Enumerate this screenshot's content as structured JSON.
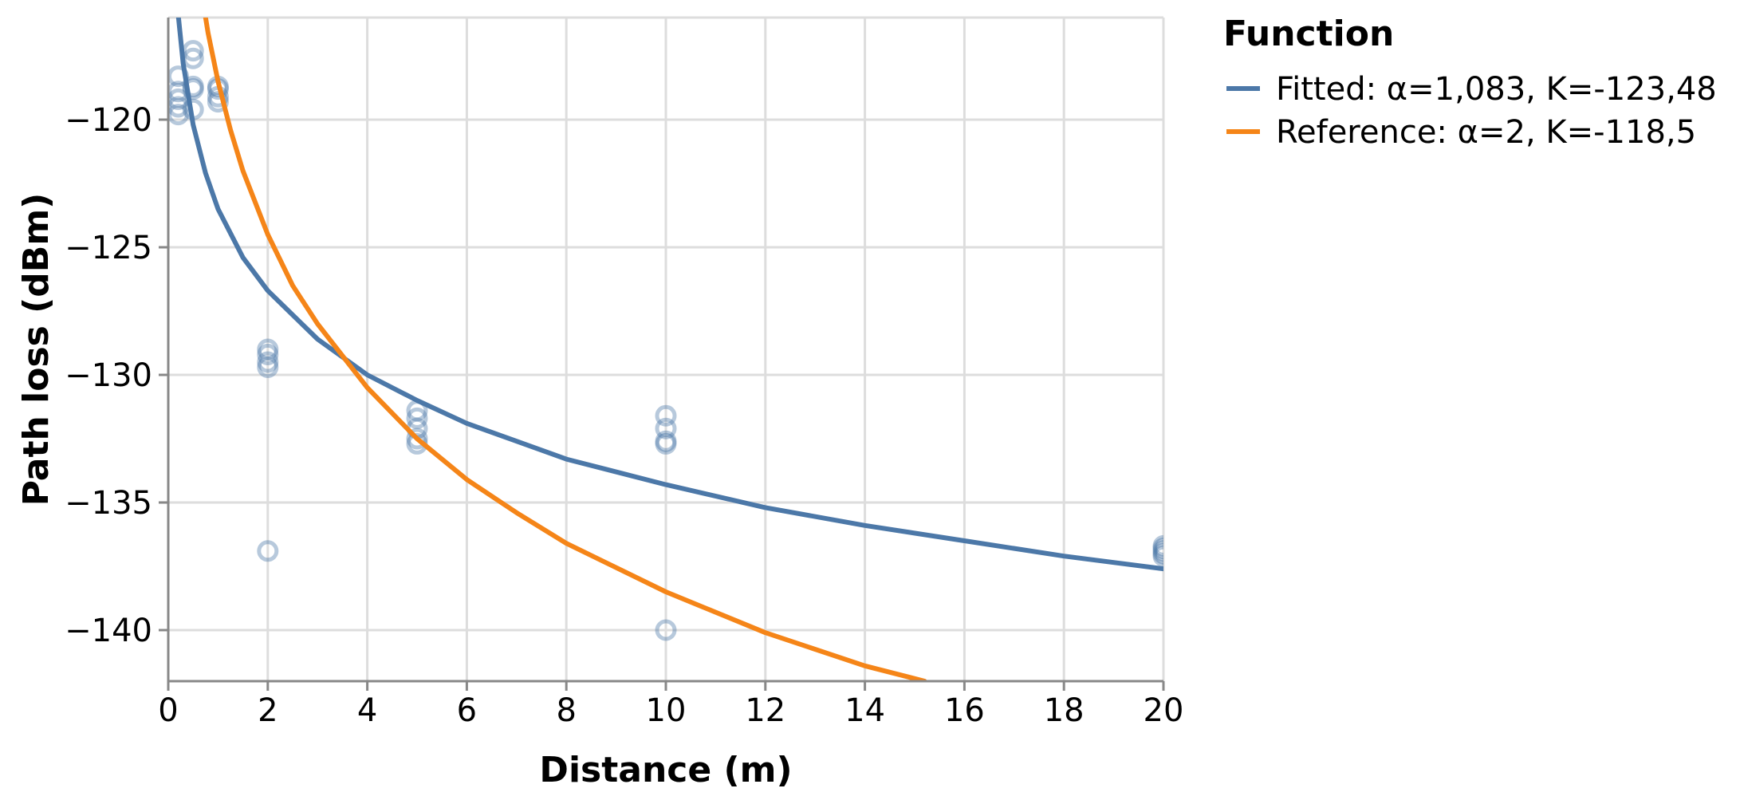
{
  "chart_data": {
    "type": "line",
    "xlabel": "Distance (m)",
    "ylabel": "Path loss (dBm)",
    "xlim": [
      0,
      20
    ],
    "ylim": [
      -142,
      -116
    ],
    "grid": true,
    "x_ticks": [
      0,
      2,
      4,
      6,
      8,
      10,
      12,
      14,
      16,
      18,
      20
    ],
    "x_tick_labels": [
      "0",
      "2",
      "4",
      "6",
      "8",
      "10",
      "12",
      "14",
      "16",
      "18",
      "20"
    ],
    "y_ticks": [
      -120,
      -125,
      -130,
      -135,
      -140
    ],
    "y_tick_labels": [
      "−120",
      "−125",
      "−130",
      "−135",
      "−140"
    ],
    "legend": {
      "title": "Function",
      "placement": "top-right",
      "entries": [
        "Fitted: α=1,083, K=-123,48",
        "Reference: α=2, K=-118,5"
      ]
    },
    "series": [
      {
        "name": "Fitted: α=1,083, K=-123,48",
        "kind": "line",
        "color": "#4c78a8",
        "x": [
          0.1,
          0.2,
          0.3,
          0.5,
          0.75,
          1,
          1.5,
          2,
          3,
          4,
          5,
          6,
          8,
          10,
          12,
          14,
          16,
          18,
          20
        ],
        "y": [
          -112.7,
          -115.9,
          -117.8,
          -120.2,
          -122.1,
          -123.5,
          -125.4,
          -126.7,
          -128.6,
          -130.0,
          -131.0,
          -131.9,
          -133.3,
          -134.3,
          -135.2,
          -135.9,
          -136.5,
          -137.1,
          -137.6
        ]
      },
      {
        "name": "Reference: α=2, K=-118,5",
        "kind": "line",
        "color": "#f58518",
        "x": [
          0.7,
          0.8,
          1,
          1.25,
          1.5,
          2,
          2.5,
          3,
          4,
          5,
          6,
          7,
          8,
          10,
          12,
          14,
          15.2
        ],
        "y": [
          -115.4,
          -116.6,
          -118.5,
          -120.4,
          -122.0,
          -124.5,
          -126.5,
          -128.0,
          -130.5,
          -132.5,
          -134.1,
          -135.4,
          -136.6,
          -138.5,
          -140.1,
          -141.4,
          -142.0
        ]
      },
      {
        "name": "",
        "kind": "points",
        "color": "#4c78a8",
        "x": [
          0.2,
          0.2,
          0.2,
          0.2,
          0.2,
          0.5,
          0.5,
          0.5,
          0.5,
          0.5,
          1,
          1,
          1,
          1,
          2,
          2,
          2,
          2,
          2,
          5,
          5,
          5,
          5,
          5,
          10,
          10,
          10,
          10,
          10,
          20,
          20,
          20,
          20,
          20
        ],
        "y": [
          -118.3,
          -118.9,
          -119.2,
          -119.5,
          -119.8,
          -117.3,
          -117.6,
          -118.7,
          -118.8,
          -119.6,
          -118.7,
          -118.8,
          -119.1,
          -119.3,
          -129.0,
          -129.2,
          -129.5,
          -129.7,
          -136.9,
          -131.4,
          -131.7,
          -132.1,
          -132.5,
          -132.7,
          -131.6,
          -132.1,
          -132.6,
          -132.7,
          -140.0,
          -136.7,
          -136.8,
          -136.9,
          -137.0,
          -137.1
        ]
      }
    ]
  }
}
